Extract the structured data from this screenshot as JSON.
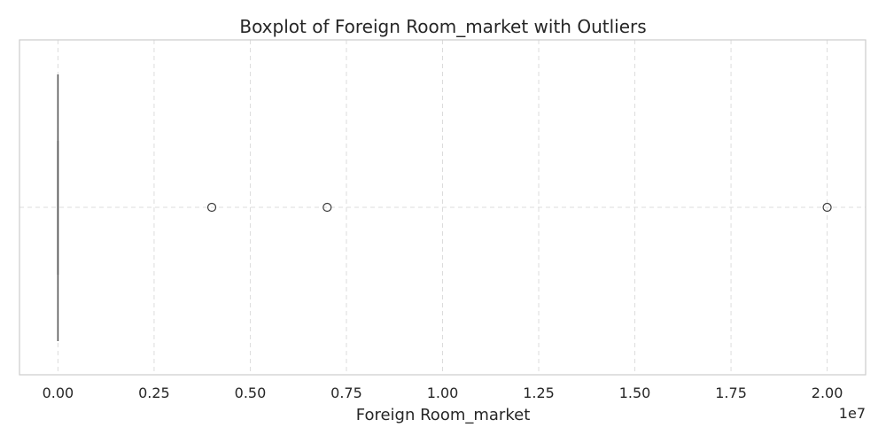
{
  "chart_data": {
    "type": "boxplot",
    "title": "Boxplot of Foreign Room_market with Outliers",
    "xlabel": "Foreign Room_market",
    "x_exponent_label": "1e7",
    "xlim": [
      -0.1,
      2.1
    ],
    "xticks": [
      0.0,
      0.25,
      0.5,
      0.75,
      1.0,
      1.25,
      1.5,
      1.75,
      2.0
    ],
    "xtick_labels": [
      "0.00",
      "0.25",
      "0.50",
      "0.75",
      "1.00",
      "1.25",
      "1.50",
      "1.75",
      "2.00"
    ],
    "box": {
      "min": 0.0,
      "q1": 0.0,
      "median": 0.0,
      "q3": 0.0,
      "max": 0.0
    },
    "outliers": [
      0.4,
      0.7,
      2.0
    ],
    "grid": true,
    "colors": {
      "box_line": "#4d4d4d",
      "outlier_edge": "#3c3c3c",
      "grid": "#dcdcdc",
      "frame": "#cccccc"
    }
  }
}
